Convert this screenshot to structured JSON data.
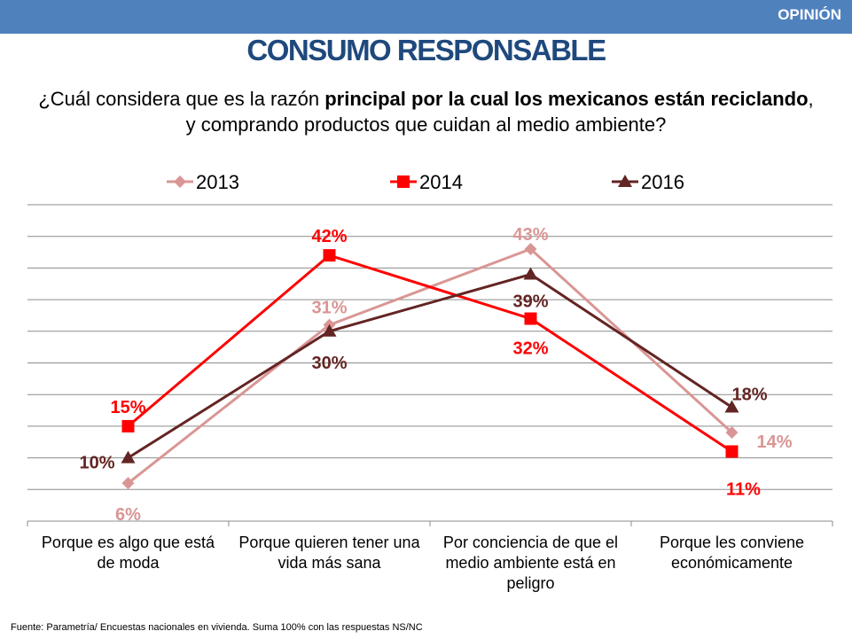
{
  "header": {
    "tag": "OPINIÓN"
  },
  "title": "CONSUMO RESPONSABLE",
  "question": {
    "part1": "¿Cuál considera que es la razón ",
    "bold": "principal por la cual los mexicanos están reciclando",
    "part2": ", y comprando productos que cuidan al medio ambiente?"
  },
  "footer": "Fuente: Parametría/ Encuestas nacionales en vivienda. Suma 100% con las respuestas NS/NC",
  "chart_data": {
    "type": "line",
    "categories": [
      [
        "Porque es algo que está",
        "de moda"
      ],
      [
        "Porque quieren tener una",
        "vida más sana"
      ],
      [
        "Por conciencia de que el",
        "medio ambiente está en",
        "peligro"
      ],
      [
        "Porque les conviene",
        "económicamente"
      ]
    ],
    "ylim": [
      0,
      50
    ],
    "grid": true,
    "legend": "top",
    "series": [
      {
        "name": "2013",
        "values": [
          6,
          31,
          43,
          14
        ],
        "labels": [
          "6%",
          "31%",
          "43%",
          "14%"
        ],
        "color": "#d99694",
        "marker": "diamond"
      },
      {
        "name": "2014",
        "values": [
          15,
          42,
          32,
          11
        ],
        "labels": [
          "15%",
          "42%",
          "32%",
          "11%"
        ],
        "color": "#ff0000",
        "marker": "square"
      },
      {
        "name": "2016",
        "values": [
          10,
          30,
          39,
          18
        ],
        "labels": [
          "10%",
          "30%",
          "39%",
          "18%"
        ],
        "color": "#632523",
        "marker": "triangle"
      }
    ]
  }
}
